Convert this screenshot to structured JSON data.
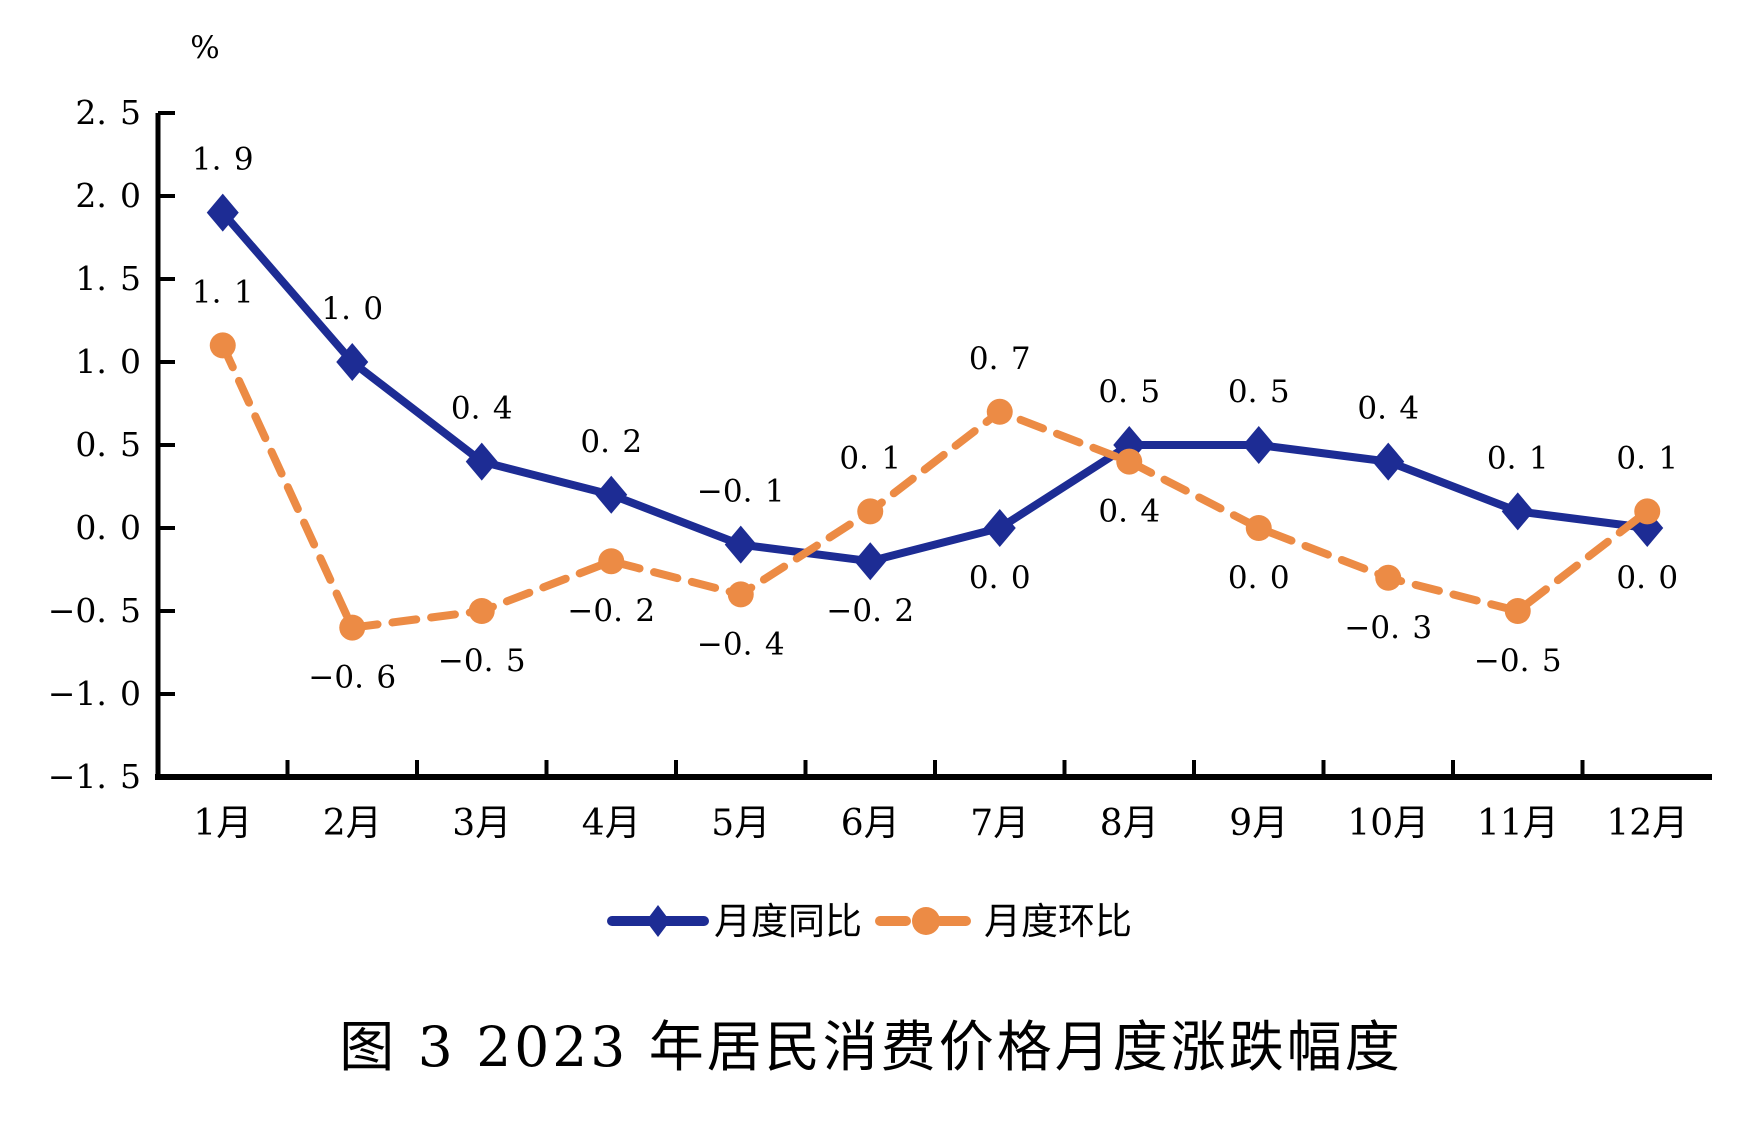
{
  "title": "图 3  2023 年居民消费价格月度涨跌幅度",
  "chart_data": {
    "type": "line",
    "categories": [
      "1月",
      "2月",
      "3月",
      "4月",
      "5月",
      "6月",
      "7月",
      "8月",
      "9月",
      "10月",
      "11月",
      "12月"
    ],
    "series": [
      {
        "name": "月度同比",
        "color": "#1d2c94",
        "line_style": "solid",
        "marker": "diamond",
        "values": [
          1.9,
          1.0,
          0.4,
          0.2,
          -0.1,
          -0.2,
          0.0,
          0.5,
          0.5,
          0.4,
          0.1,
          0.0
        ],
        "labels": [
          "1.9",
          "1.0",
          "0.4",
          "0.2",
          "-0.1",
          "-0.2",
          "0.0",
          "0.5",
          "0.5",
          "0.4",
          "0.1",
          "0.0"
        ],
        "label_positions": [
          "above",
          "above",
          "above",
          "above",
          "above",
          "below",
          "below",
          "above",
          "above",
          "above",
          "above",
          "below"
        ]
      },
      {
        "name": "月度环比",
        "color": "#ec8b45",
        "line_style": "dashed",
        "marker": "circle",
        "values": [
          1.1,
          -0.6,
          -0.5,
          -0.2,
          -0.4,
          0.1,
          0.7,
          0.4,
          0.0,
          -0.3,
          -0.5,
          0.1
        ],
        "labels": [
          "1.1",
          "-0.6",
          "-0.5",
          "-0.2",
          "-0.4",
          "0.1",
          "0.7",
          "0.4",
          "0.0",
          "-0.3",
          "-0.5",
          "0.1"
        ],
        "label_positions": [
          "above",
          "below",
          "below",
          "below",
          "below",
          "above",
          "above",
          "below",
          "below",
          "below",
          "below",
          "above"
        ]
      }
    ],
    "title": "图 3  2023 年居民消费价格月度涨跌幅度",
    "xlabel": "",
    "ylabel": "",
    "ylabel_unit": "%",
    "ylim": [
      -1.5,
      2.5
    ],
    "ytick_step": 0.5,
    "ytick_labels": [
      "2.5",
      "2.0",
      "1.5",
      "1.0",
      "0.5",
      "0.0",
      "-0.5",
      "-1.0",
      "-1.5"
    ],
    "grid": false,
    "legend_position": "bottom",
    "axis_color": "#000000",
    "text_color": "#000000"
  }
}
